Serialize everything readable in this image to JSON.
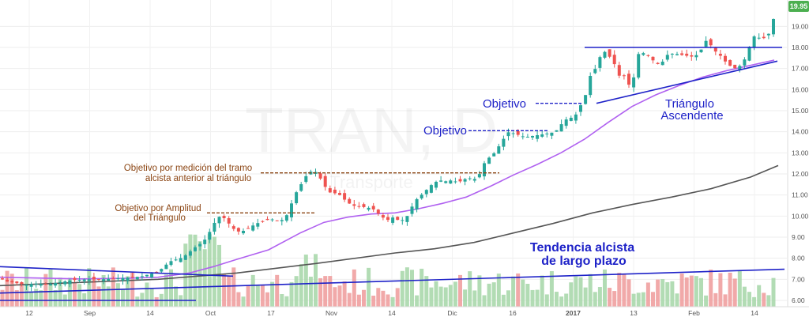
{
  "chart_data": {
    "type": "candlestick",
    "watermark": {
      "symbol": "TRAN, D",
      "subtitle": "Transporte"
    },
    "last_price": "19.95",
    "y_axis": {
      "range": [
        5.7,
        20.25
      ],
      "ticks": [
        "19.00",
        "18.00",
        "17.00",
        "16.00",
        "15.00",
        "14.00",
        "13.00",
        "12.00",
        "11.00",
        "10.00",
        "9.00",
        "8.00",
        "7.00",
        "6.00"
      ]
    },
    "x_axis": {
      "ticks": [
        {
          "label": "12",
          "bold": false
        },
        {
          "label": "Sep",
          "bold": false
        },
        {
          "label": "14",
          "bold": false
        },
        {
          "label": "Oct",
          "bold": false
        },
        {
          "label": "17",
          "bold": false
        },
        {
          "label": "Nov",
          "bold": false
        },
        {
          "label": "14",
          "bold": false
        },
        {
          "label": "Dic",
          "bold": false
        },
        {
          "label": "16",
          "bold": false
        },
        {
          "label": "2017",
          "bold": true
        },
        {
          "label": "13",
          "bold": false
        },
        {
          "label": "Feb",
          "bold": false
        },
        {
          "label": "14",
          "bold": false
        }
      ]
    },
    "close_path": [
      [
        0,
        7.05
      ],
      [
        8,
        6.9
      ],
      [
        16,
        6.85
      ],
      [
        24,
        6.8
      ],
      [
        34,
        6.75
      ],
      [
        44,
        6.8
      ],
      [
        60,
        6.75
      ],
      [
        74,
        6.85
      ],
      [
        90,
        6.95
      ],
      [
        110,
        7.0
      ],
      [
        130,
        7.0
      ],
      [
        150,
        7.05
      ],
      [
        170,
        7.1
      ],
      [
        180,
        7.15
      ],
      [
        190,
        7.25
      ],
      [
        200,
        7.35
      ],
      [
        206,
        7.55
      ],
      [
        212,
        7.75
      ],
      [
        218,
        7.9
      ],
      [
        224,
        7.95
      ],
      [
        232,
        8.05
      ],
      [
        240,
        8.3
      ],
      [
        248,
        8.55
      ],
      [
        256,
        8.75
      ],
      [
        262,
        9.0
      ],
      [
        268,
        9.45
      ],
      [
        274,
        9.85
      ],
      [
        280,
        10.05
      ],
      [
        286,
        9.8
      ],
      [
        292,
        9.55
      ],
      [
        298,
        9.3
      ],
      [
        304,
        9.25
      ],
      [
        312,
        9.35
      ],
      [
        320,
        9.55
      ],
      [
        328,
        9.7
      ],
      [
        336,
        9.8
      ],
      [
        344,
        9.85
      ],
      [
        352,
        9.75
      ],
      [
        360,
        9.85
      ],
      [
        366,
        10.25
      ],
      [
        372,
        10.95
      ],
      [
        378,
        11.3
      ],
      [
        384,
        11.7
      ],
      [
        390,
        12.05
      ],
      [
        396,
        12.15
      ],
      [
        402,
        12.05
      ],
      [
        408,
        11.6
      ],
      [
        414,
        11.25
      ],
      [
        420,
        11.05
      ],
      [
        426,
        11.1
      ],
      [
        432,
        10.95
      ],
      [
        438,
        10.7
      ],
      [
        446,
        10.5
      ],
      [
        456,
        10.45
      ],
      [
        466,
        10.4
      ],
      [
        474,
        10.3
      ],
      [
        482,
        10.0
      ],
      [
        490,
        9.8
      ],
      [
        498,
        9.95
      ],
      [
        506,
        9.75
      ],
      [
        514,
        9.9
      ],
      [
        520,
        10.35
      ],
      [
        526,
        10.75
      ],
      [
        532,
        10.95
      ],
      [
        540,
        11.25
      ],
      [
        548,
        11.55
      ],
      [
        556,
        11.7
      ],
      [
        564,
        11.65
      ],
      [
        572,
        11.7
      ],
      [
        580,
        11.6
      ],
      [
        588,
        11.75
      ],
      [
        596,
        11.8
      ],
      [
        602,
        11.75
      ],
      [
        608,
        12.05
      ],
      [
        614,
        12.6
      ],
      [
        620,
        12.8
      ],
      [
        626,
        13.0
      ],
      [
        632,
        13.35
      ],
      [
        638,
        13.7
      ],
      [
        644,
        14.0
      ],
      [
        652,
        13.9
      ],
      [
        660,
        13.8
      ],
      [
        666,
        13.75
      ],
      [
        674,
        13.8
      ],
      [
        682,
        13.85
      ],
      [
        690,
        13.9
      ],
      [
        698,
        13.95
      ],
      [
        706,
        14.1
      ],
      [
        714,
        14.55
      ],
      [
        722,
        14.65
      ],
      [
        728,
        14.75
      ],
      [
        734,
        15.2
      ],
      [
        740,
        15.55
      ],
      [
        746,
        16.6
      ],
      [
        752,
        16.85
      ],
      [
        758,
        17.45
      ],
      [
        764,
        17.85
      ],
      [
        770,
        17.6
      ],
      [
        776,
        17.45
      ],
      [
        782,
        16.6
      ],
      [
        788,
        16.8
      ],
      [
        794,
        16.35
      ],
      [
        800,
        16.0
      ],
      [
        806,
        17.65
      ],
      [
        812,
        17.75
      ],
      [
        818,
        17.7
      ],
      [
        824,
        17.45
      ],
      [
        830,
        17.3
      ],
      [
        836,
        17.1
      ],
      [
        842,
        17.6
      ],
      [
        848,
        17.7
      ],
      [
        854,
        17.7
      ],
      [
        862,
        17.65
      ],
      [
        870,
        17.6
      ],
      [
        878,
        17.55
      ],
      [
        886,
        17.75
      ],
      [
        892,
        18.35
      ],
      [
        898,
        18.2
      ],
      [
        904,
        17.85
      ],
      [
        910,
        17.7
      ],
      [
        916,
        17.4
      ],
      [
        922,
        17.2
      ],
      [
        928,
        17.0
      ],
      [
        934,
        17.05
      ],
      [
        940,
        17.25
      ],
      [
        946,
        17.7
      ],
      [
        952,
        18.5
      ],
      [
        958,
        18.55
      ],
      [
        964,
        18.35
      ],
      [
        970,
        18.55
      ],
      [
        976,
        18.75
      ],
      [
        982,
        19.95
      ]
    ],
    "sma_purple": [
      [
        0,
        7.1
      ],
      [
        100,
        7.02
      ],
      [
        160,
        7.05
      ],
      [
        200,
        7.1
      ],
      [
        240,
        7.3
      ],
      [
        270,
        7.6
      ],
      [
        300,
        7.95
      ],
      [
        340,
        8.4
      ],
      [
        380,
        9.2
      ],
      [
        410,
        9.7
      ],
      [
        440,
        9.95
      ],
      [
        470,
        10.1
      ],
      [
        500,
        10.15
      ],
      [
        530,
        10.35
      ],
      [
        560,
        10.6
      ],
      [
        590,
        10.9
      ],
      [
        620,
        11.4
      ],
      [
        650,
        11.95
      ],
      [
        680,
        12.45
      ],
      [
        710,
        13.0
      ],
      [
        740,
        13.65
      ],
      [
        770,
        14.45
      ],
      [
        800,
        15.2
      ],
      [
        830,
        15.75
      ],
      [
        860,
        16.2
      ],
      [
        890,
        16.6
      ],
      [
        920,
        16.9
      ],
      [
        950,
        17.15
      ],
      [
        980,
        17.4
      ]
    ],
    "sma_gray": [
      [
        0,
        6.7
      ],
      [
        100,
        6.85
      ],
      [
        200,
        7.0
      ],
      [
        300,
        7.3
      ],
      [
        400,
        7.75
      ],
      [
        500,
        8.25
      ],
      [
        550,
        8.45
      ],
      [
        600,
        8.75
      ],
      [
        650,
        9.2
      ],
      [
        700,
        9.65
      ],
      [
        750,
        10.15
      ],
      [
        800,
        10.55
      ],
      [
        850,
        10.9
      ],
      [
        900,
        11.3
      ],
      [
        950,
        11.85
      ],
      [
        985,
        12.4
      ]
    ],
    "volume_scale": 110,
    "volume_seed": 7,
    "trendlines": [
      {
        "x1": 0,
        "y1": 7.6,
        "x2": 295,
        "y2": 7.15,
        "color": "#1e22c8"
      },
      {
        "x1": 0,
        "y1": 6.35,
        "x2": 993,
        "y2": 7.48,
        "color": "#1e22c8"
      },
      {
        "x1": 0,
        "y1": 6.0,
        "x2": 248,
        "y2": 6.0,
        "color": "#1e22c8"
      },
      {
        "x1": 740,
        "y1": 18.0,
        "x2": 990,
        "y2": 18.0,
        "color": "#1e22c8"
      },
      {
        "x1": 755,
        "y1": 15.35,
        "x2": 984,
        "y2": 17.35,
        "color": "#1e22c8"
      }
    ],
    "dashed_lines": [
      {
        "x1": 262,
        "x2": 398,
        "y": 10.15,
        "color": "#8b4513"
      },
      {
        "x1": 330,
        "x2": 632,
        "y": 12.05,
        "color": "#8b4513"
      },
      {
        "x1": 593,
        "x2": 694,
        "y": 14.05,
        "color": "#1e22c8"
      },
      {
        "x1": 678,
        "x2": 738,
        "y": 15.35,
        "color": "#1e22c8"
      }
    ],
    "annotations": {
      "objetivo_1": "Objetivo",
      "objetivo_2": "Objetivo",
      "triangulo_1": "Triángulo",
      "triangulo_2": "Ascendente",
      "medicion_1": "Objetivo por medición del  tramo",
      "medicion_2": "alcista anterior al triángulo",
      "amplitud_1": "Objetivo por Amplitud",
      "amplitud_2": "del Triángulo",
      "tendencia_1": "Tendencia alcista",
      "tendencia_2": "de largo plazo"
    },
    "colors": {
      "up": "#26a69a",
      "down": "#ef5350",
      "vol_up": "#a5d6a7",
      "vol_down": "#ef9a9a",
      "sma_fast": "#b061f0",
      "sma_slow": "#555555",
      "trend": "#1e22c8",
      "target": "#8b4513",
      "price_badge": "#4caf50"
    }
  }
}
